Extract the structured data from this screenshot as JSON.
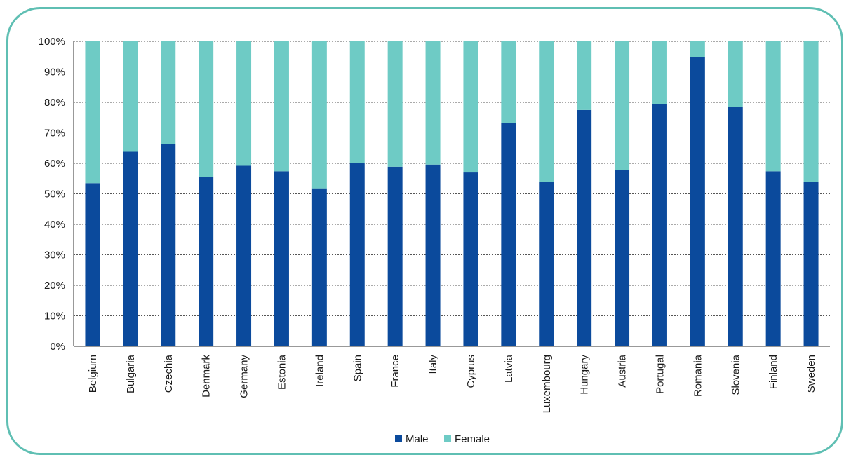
{
  "chart_data": {
    "type": "bar",
    "stacked": true,
    "y_format": "percent",
    "ylim": [
      0,
      100
    ],
    "y_ticks": [
      0,
      10,
      20,
      30,
      40,
      50,
      60,
      70,
      80,
      90,
      100
    ],
    "y_tick_labels": [
      "0%",
      "10%",
      "20%",
      "30%",
      "40%",
      "50%",
      "60%",
      "70%",
      "80%",
      "90%",
      "100%"
    ],
    "grid": true,
    "legend_position": "bottom",
    "categories": [
      "Belgium",
      "Bulgaria",
      "Czechia",
      "Denmark",
      "Germany",
      "Estonia",
      "Ireland",
      "Spain",
      "France",
      "Italy",
      "Cyprus",
      "Latvia",
      "Luxembourg",
      "Hungary",
      "Austria",
      "Portugal",
      "Romania",
      "Slovenia",
      "Finland",
      "Sweden"
    ],
    "series": [
      {
        "name": "Male",
        "color": "#0b4a9c",
        "values": [
          53.5,
          63.8,
          66.4,
          55.6,
          59.2,
          57.4,
          51.8,
          60.2,
          58.9,
          59.6,
          57.0,
          73.3,
          53.8,
          77.5,
          57.8,
          79.5,
          94.8,
          78.6,
          57.4,
          53.8
        ]
      },
      {
        "name": "Female",
        "color": "#6ecbc5",
        "values": [
          46.5,
          36.2,
          33.6,
          44.4,
          40.8,
          42.6,
          48.2,
          39.8,
          41.1,
          40.4,
          43.0,
          26.7,
          46.2,
          22.5,
          42.2,
          20.5,
          5.2,
          21.4,
          42.6,
          46.2
        ]
      }
    ]
  }
}
